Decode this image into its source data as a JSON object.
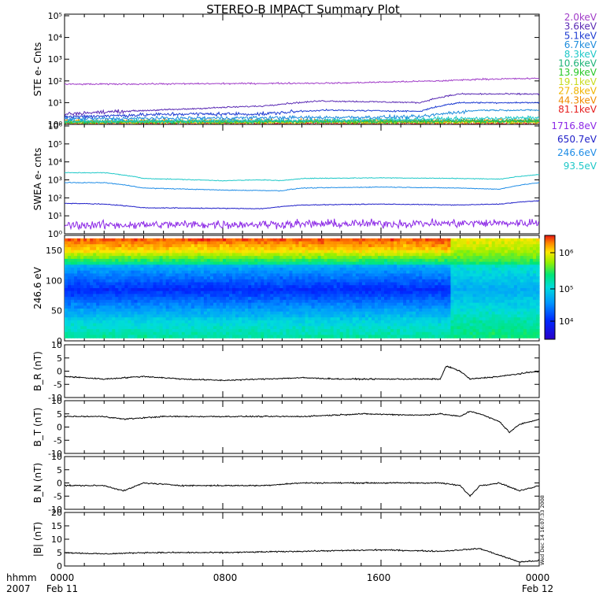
{
  "title": "STEREO-B IMPACT Summary Plot",
  "footer": {
    "left_top": "hhmm",
    "left_bottom": "2007",
    "x_ticks": [
      "0000",
      "0800",
      "1600",
      "0000"
    ],
    "date_left": "Feb 11",
    "date_right": "Feb 12"
  },
  "timestamp_text": "Wed Dec 14 16:07:33 2008",
  "legend": {
    "ste": [
      {
        "label": "2.0keV",
        "color": "#a03cc8"
      },
      {
        "label": "3.6keV",
        "color": "#5a2ab4"
      },
      {
        "label": "5.1keV",
        "color": "#1e3cd2"
      },
      {
        "label": "6.7keV",
        "color": "#1e8cdc"
      },
      {
        "label": "8.3keV",
        "color": "#1ec8c8"
      },
      {
        "label": "10.6keV",
        "color": "#1eb478"
      },
      {
        "label": "13.9keV",
        "color": "#28c828"
      },
      {
        "label": "19.1keV",
        "color": "#c8dc1e"
      },
      {
        "label": "27.8keV",
        "color": "#f0b400"
      },
      {
        "label": "44.3keV",
        "color": "#f08c00"
      },
      {
        "label": "81.1keV",
        "color": "#e61e1e"
      }
    ],
    "swea": [
      {
        "label": "1716.8eV",
        "color": "#8c28e6"
      },
      {
        "label": "650.7eV",
        "color": "#1e1ec8"
      },
      {
        "label": "246.6eV",
        "color": "#1e8ce6"
      },
      {
        "label": "93.5eV",
        "color": "#1ec8c8"
      }
    ]
  },
  "panels": [
    {
      "ylabel": "STE e- Cnts",
      "yticks": [
        "10⁰",
        "10¹",
        "10²",
        "10³",
        "10⁴",
        "10⁵"
      ]
    },
    {
      "ylabel": "SWEA e- cnts",
      "yticks": [
        "10⁰",
        "10¹",
        "10²",
        "10³",
        "10⁴",
        "10⁵",
        "10⁶"
      ]
    },
    {
      "ylabel": "246.6 eV",
      "yticks": [
        "0",
        "50",
        "100",
        "150"
      ]
    },
    {
      "ylabel": "B_R (nT)",
      "yticks": [
        "-10",
        "-5",
        "0",
        "5",
        "10"
      ]
    },
    {
      "ylabel": "B_T (nT)",
      "yticks": [
        "-10",
        "-5",
        "0",
        "5",
        "10"
      ]
    },
    {
      "ylabel": "B_N (nT)",
      "yticks": [
        "-10",
        "-5",
        "0",
        "5",
        "10"
      ]
    },
    {
      "ylabel": "|B| (nT)",
      "yticks": [
        "0",
        "5",
        "10",
        "15",
        "20"
      ]
    }
  ],
  "colorbar": {
    "ticks": [
      "10⁶",
      "10⁵",
      "10⁴"
    ]
  },
  "chart_data": [
    {
      "type": "line",
      "title": "STE e- Cnts",
      "x_range_hours": [
        0,
        24
      ],
      "ylim": [
        1,
        100000
      ],
      "yscale": "log",
      "series": [
        {
          "name": "2.0keV",
          "anchors": [
            [
              0,
              70
            ],
            [
              8,
              75
            ],
            [
              14,
              80
            ],
            [
              19,
              100
            ],
            [
              21,
              120
            ],
            [
              24,
              130
            ]
          ]
        },
        {
          "name": "3.6keV",
          "anchors": [
            [
              0,
              3
            ],
            [
              6,
              5
            ],
            [
              10,
              7
            ],
            [
              13,
              12
            ],
            [
              18,
              10
            ],
            [
              20,
              25
            ],
            [
              24,
              25
            ]
          ]
        },
        {
          "name": "5.1keV",
          "anchors": [
            [
              0,
              2.2
            ],
            [
              6,
              3
            ],
            [
              10,
              3
            ],
            [
              13,
              4.5
            ],
            [
              18,
              4
            ],
            [
              20,
              10
            ],
            [
              24,
              10
            ]
          ]
        },
        {
          "name": "6.7keV",
          "anchors": [
            [
              0,
              1.8
            ],
            [
              10,
              2
            ],
            [
              18,
              2.2
            ],
            [
              21,
              4.5
            ],
            [
              24,
              4.5
            ]
          ]
        },
        {
          "name": "8.3keV",
          "anchors": [
            [
              0,
              1.4
            ],
            [
              12,
              1.5
            ],
            [
              24,
              2
            ]
          ]
        },
        {
          "name": "10.6keV",
          "anchors": [
            [
              0,
              1.3
            ],
            [
              24,
              1.5
            ]
          ]
        },
        {
          "name": "13.9keV",
          "anchors": [
            [
              0,
              1.25
            ],
            [
              24,
              1.4
            ]
          ]
        },
        {
          "name": "19.1keV",
          "anchors": [
            [
              0,
              1.2
            ],
            [
              24,
              1.3
            ]
          ]
        },
        {
          "name": "27.8keV",
          "anchors": [
            [
              0,
              1.3
            ],
            [
              24,
              1.3
            ]
          ]
        },
        {
          "name": "44.3keV",
          "anchors": [
            [
              0,
              1.4
            ],
            [
              24,
              1.5
            ]
          ]
        },
        {
          "name": "81.1keV",
          "anchors": [
            [
              0,
              1.1
            ],
            [
              24,
              1.1
            ]
          ]
        }
      ]
    },
    {
      "type": "line",
      "title": "SWEA e- cnts",
      "x_range_hours": [
        0,
        24
      ],
      "ylim": [
        1,
        1000000
      ],
      "yscale": "log",
      "series": [
        {
          "name": "93.5eV",
          "anchors": [
            [
              0,
              2500
            ],
            [
              2,
              2500
            ],
            [
              4,
              1200
            ],
            [
              8,
              900
            ],
            [
              10,
              1000
            ],
            [
              11,
              900
            ],
            [
              12,
              1200
            ],
            [
              16,
              1300
            ],
            [
              20,
              1200
            ],
            [
              22,
              1100
            ],
            [
              24,
              2000
            ]
          ]
        },
        {
          "name": "246.6eV",
          "anchors": [
            [
              0,
              700
            ],
            [
              2,
              700
            ],
            [
              4,
              350
            ],
            [
              8,
              270
            ],
            [
              11,
              250
            ],
            [
              12,
              350
            ],
            [
              16,
              400
            ],
            [
              20,
              350
            ],
            [
              22,
              300
            ],
            [
              24,
              700
            ]
          ]
        },
        {
          "name": "650.7eV",
          "anchors": [
            [
              0,
              50
            ],
            [
              2,
              45
            ],
            [
              4,
              28
            ],
            [
              10,
              25
            ],
            [
              12,
              40
            ],
            [
              16,
              45
            ],
            [
              20,
              40
            ],
            [
              22,
              45
            ],
            [
              24,
              70
            ]
          ]
        },
        {
          "name": "1716.8eV",
          "anchors": [
            [
              0,
              3
            ],
            [
              24,
              4
            ]
          ]
        }
      ]
    },
    {
      "type": "heatmap",
      "title": "246.6 eV",
      "x_range_hours": [
        0,
        24
      ],
      "ylim": [
        0,
        175
      ],
      "zscale": "log",
      "zlim": [
        3000,
        3000000
      ]
    },
    {
      "type": "line",
      "title": "B_R (nT)",
      "x_range_hours": [
        0,
        24
      ],
      "ylim": [
        -10,
        10
      ],
      "series": [
        {
          "name": "",
          "anchors": [
            [
              0,
              -2
            ],
            [
              2,
              -3
            ],
            [
              4,
              -2
            ],
            [
              6,
              -3
            ],
            [
              8,
              -3.5
            ],
            [
              10,
              -3
            ],
            [
              12,
              -2.5
            ],
            [
              14,
              -3
            ],
            [
              17,
              -3
            ],
            [
              19,
              -3
            ],
            [
              19.3,
              2
            ],
            [
              20,
              0
            ],
            [
              20.5,
              -3
            ],
            [
              22,
              -2
            ],
            [
              24,
              0
            ]
          ]
        }
      ]
    },
    {
      "type": "line",
      "title": "B_T (nT)",
      "x_range_hours": [
        0,
        24
      ],
      "ylim": [
        -10,
        10
      ],
      "series": [
        {
          "name": "",
          "anchors": [
            [
              0,
              4
            ],
            [
              2,
              4
            ],
            [
              3,
              3
            ],
            [
              5,
              4
            ],
            [
              8,
              4
            ],
            [
              10,
              4
            ],
            [
              12,
              4
            ],
            [
              15,
              5
            ],
            [
              18,
              4.5
            ],
            [
              19,
              5
            ],
            [
              20,
              4
            ],
            [
              20.5,
              6
            ],
            [
              21,
              5
            ],
            [
              22,
              2
            ],
            [
              22.5,
              -2
            ],
            [
              23,
              1
            ],
            [
              24,
              3
            ]
          ]
        }
      ]
    },
    {
      "type": "line",
      "title": "B_N (nT)",
      "x_range_hours": [
        0,
        24
      ],
      "ylim": [
        -10,
        10
      ],
      "series": [
        {
          "name": "",
          "anchors": [
            [
              0,
              -1
            ],
            [
              2,
              -1
            ],
            [
              3,
              -3
            ],
            [
              4,
              0
            ],
            [
              6,
              -1
            ],
            [
              8,
              -1
            ],
            [
              10,
              -1
            ],
            [
              12,
              0
            ],
            [
              15,
              0
            ],
            [
              18,
              0
            ],
            [
              19,
              0
            ],
            [
              20,
              -1
            ],
            [
              20.5,
              -5
            ],
            [
              21,
              -1
            ],
            [
              22,
              0
            ],
            [
              23,
              -3
            ],
            [
              24,
              -1
            ]
          ]
        }
      ]
    },
    {
      "type": "line",
      "title": "|B| (nT)",
      "x_range_hours": [
        0,
        24
      ],
      "ylim": [
        0,
        20
      ],
      "series": [
        {
          "name": "",
          "anchors": [
            [
              0,
              5
            ],
            [
              2,
              4.5
            ],
            [
              4,
              5
            ],
            [
              8,
              5
            ],
            [
              12,
              5.5
            ],
            [
              16,
              6
            ],
            [
              19,
              5.5
            ],
            [
              20,
              6
            ],
            [
              21,
              6.5
            ],
            [
              22,
              4
            ],
            [
              23,
              1.5
            ],
            [
              24,
              2
            ]
          ]
        }
      ]
    }
  ]
}
